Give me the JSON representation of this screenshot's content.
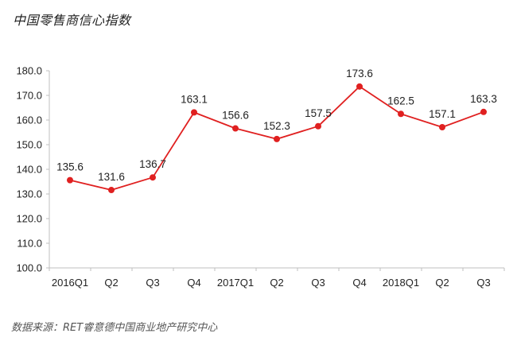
{
  "chart_data": {
    "type": "line",
    "title": "中国零售商信心指数",
    "source": "数据来源：RET睿意德中国商业地产研究中心",
    "categories": [
      "2016Q1",
      "Q2",
      "Q3",
      "Q4",
      "2017Q1",
      "Q2",
      "Q3",
      "Q4",
      "2018Q1",
      "Q2",
      "Q3"
    ],
    "series": [
      {
        "values": [
          135.6,
          131.6,
          136.7,
          163.1,
          156.6,
          152.3,
          157.5,
          173.6,
          162.5,
          157.1,
          163.3
        ],
        "labels": [
          "135.6",
          "131.6",
          "136.7",
          "163.1",
          "156.6",
          "152.3",
          "157.5",
          "173.6",
          "162.5",
          "157.1",
          "163.3"
        ],
        "color": "#e02020"
      }
    ],
    "ylim": [
      100,
      180
    ],
    "yticks": [
      "100.0",
      "110.0",
      "120.0",
      "130.0",
      "140.0",
      "150.0",
      "160.0",
      "170.0",
      "180.0"
    ],
    "grid": false,
    "legend": "none"
  }
}
